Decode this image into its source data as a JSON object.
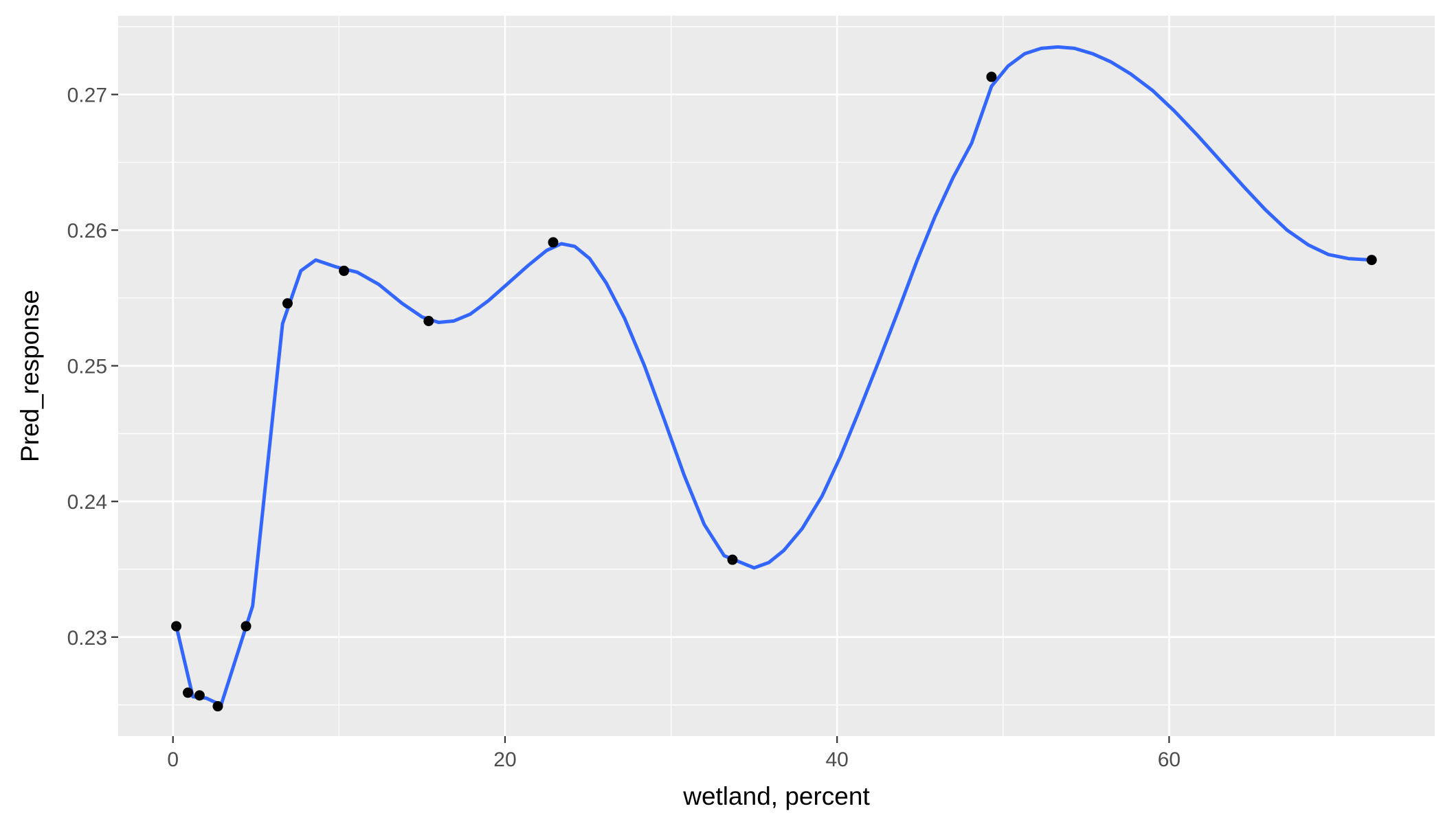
{
  "chart_data": {
    "type": "line",
    "xlabel": "wetland, percent",
    "ylabel": "Pred_response",
    "xlim": [
      -3.3,
      76.0
    ],
    "ylim": [
      0.2227,
      0.2758
    ],
    "x_ticks": [
      0,
      20,
      40,
      60
    ],
    "x_tick_labels": [
      "0",
      "20",
      "40",
      "60"
    ],
    "y_ticks": [
      0.23,
      0.24,
      0.25,
      0.26,
      0.27
    ],
    "y_tick_labels": [
      "0.23",
      "0.24",
      "0.25",
      "0.26",
      "0.27"
    ],
    "grid": true,
    "legend": "none",
    "colors": {
      "line": "#3366ff",
      "points": "#000000",
      "panel": "#ebebeb"
    },
    "points": {
      "x": [
        0.2,
        0.9,
        1.6,
        2.7,
        4.4,
        6.9,
        10.3,
        15.4,
        22.9,
        33.7,
        49.3,
        72.2
      ],
      "y": [
        0.2308,
        0.2259,
        0.2257,
        0.2249,
        0.2308,
        0.2546,
        0.257,
        0.2533,
        0.2591,
        0.2357,
        0.2713,
        0.2578
      ]
    },
    "smooth_line": {
      "x": [
        0.2,
        1.2,
        2.0,
        2.9,
        4.8,
        6.6,
        7.7,
        8.6,
        9.8,
        11.1,
        12.4,
        13.8,
        15.0,
        16.0,
        16.9,
        17.9,
        19.0,
        20.2,
        21.4,
        22.5,
        23.4,
        24.2,
        25.1,
        26.1,
        27.2,
        28.4,
        29.6,
        30.8,
        32.0,
        33.2,
        34.4,
        35.0,
        35.9,
        36.8,
        37.9,
        39.1,
        40.2,
        41.3,
        42.5,
        43.7,
        44.8,
        45.9,
        47.0,
        48.1,
        49.3,
        50.3,
        51.3,
        52.3,
        53.3,
        54.3,
        55.4,
        56.5,
        57.7,
        59.0,
        60.3,
        61.7,
        63.1,
        64.5,
        65.8,
        67.1,
        68.4,
        69.6,
        70.8,
        72.2
      ],
      "y": [
        0.2308,
        0.2256,
        0.2255,
        0.225,
        0.2323,
        0.2531,
        0.257,
        0.2578,
        0.2573,
        0.2569,
        0.256,
        0.2546,
        0.2536,
        0.2532,
        0.2533,
        0.2538,
        0.2548,
        0.2561,
        0.2574,
        0.2585,
        0.259,
        0.2588,
        0.2579,
        0.2561,
        0.2535,
        0.25,
        0.246,
        0.2419,
        0.2383,
        0.236,
        0.2354,
        0.2351,
        0.2355,
        0.2364,
        0.238,
        0.2404,
        0.2433,
        0.2466,
        0.2503,
        0.2541,
        0.2577,
        0.261,
        0.2639,
        0.2664,
        0.2706,
        0.2721,
        0.273,
        0.2734,
        0.2735,
        0.2734,
        0.273,
        0.2724,
        0.2715,
        0.2703,
        0.2688,
        0.267,
        0.2651,
        0.2632,
        0.2615,
        0.26,
        0.2589,
        0.2582,
        0.2579,
        0.2578
      ]
    }
  }
}
